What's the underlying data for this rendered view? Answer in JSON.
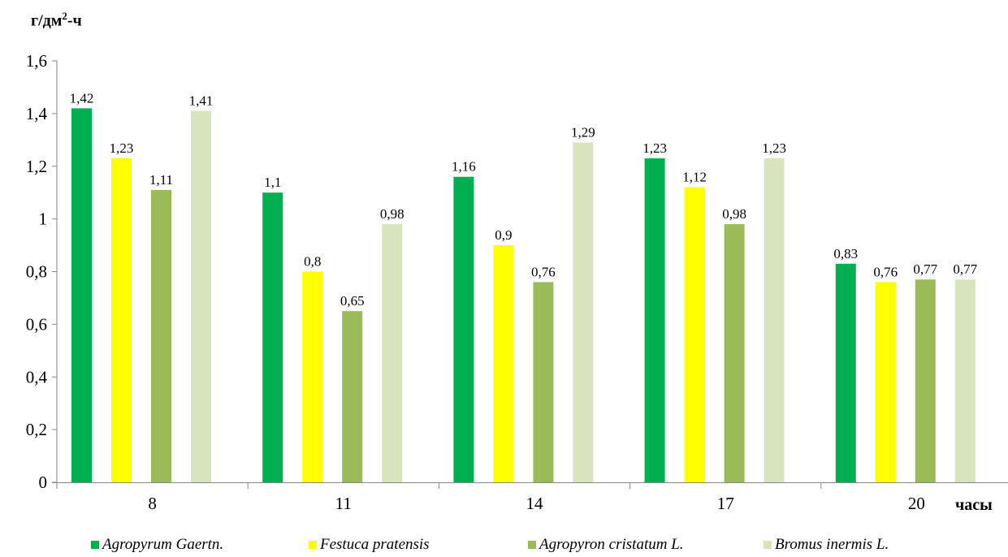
{
  "chart_data": {
    "type": "bar",
    "ylabel_parts": {
      "pre": "г/дм",
      "sup": "2",
      "post": "-ч"
    },
    "xlabel": "часы",
    "categories": [
      "8",
      "11",
      "14",
      "17",
      "20"
    ],
    "ylim": [
      0,
      1.6
    ],
    "yticks": [
      "0",
      "0,2",
      "0,4",
      "0,6",
      "0,8",
      "1",
      "1,2",
      "1,4",
      "1,6"
    ],
    "grid": false,
    "legend_position": "bottom",
    "series": [
      {
        "name": "Agropyrum Gaertn.",
        "color": "#00b050",
        "values": [
          1.42,
          1.1,
          1.16,
          1.23,
          0.83
        ],
        "labels": [
          "1,42",
          "1,1",
          "1,16",
          "1,23",
          "0,83"
        ]
      },
      {
        "name": "Festuca pratensis",
        "color": "#ffff00",
        "values": [
          1.23,
          0.8,
          0.9,
          1.12,
          0.76
        ],
        "labels": [
          "1,23",
          "0,8",
          "0,9",
          "1,12",
          "0,76"
        ]
      },
      {
        "name": "Agropyron cristatum L.",
        "color": "#9bbb59",
        "values": [
          1.11,
          0.65,
          0.76,
          0.98,
          0.77
        ],
        "labels": [
          "1,11",
          "0,65",
          "0,76",
          "0,98",
          "0,77"
        ]
      },
      {
        "name": "Bromus inermis L.",
        "color": "#d7e4bd",
        "values": [
          1.41,
          0.98,
          1.29,
          1.23,
          0.77
        ],
        "labels": [
          "1,41",
          "0,98",
          "1,29",
          "1,23",
          "0,77"
        ]
      }
    ]
  }
}
